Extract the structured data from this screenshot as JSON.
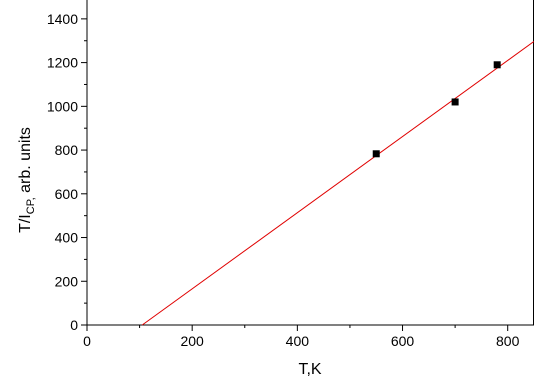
{
  "chart_data": {
    "type": "scatter",
    "xlabel": "T,K",
    "ylabel_main": "T/I",
    "ylabel_sub": "CP,",
    "ylabel_rest": " arb. units",
    "xlim": [
      0,
      850
    ],
    "ylim": [
      0,
      1500
    ],
    "x_ticks": [
      0,
      200,
      400,
      600,
      800
    ],
    "y_ticks": [
      0,
      200,
      400,
      600,
      800,
      1000,
      1200,
      1400
    ],
    "grid": false,
    "series": [
      {
        "type": "scatter",
        "x": [
          550,
          700,
          780
        ],
        "y": [
          783,
          1020,
          1190
        ],
        "color": "#000000"
      },
      {
        "type": "line",
        "x": [
          105,
          850
        ],
        "y": [
          0,
          1297
        ],
        "color": "#e00000"
      }
    ]
  }
}
